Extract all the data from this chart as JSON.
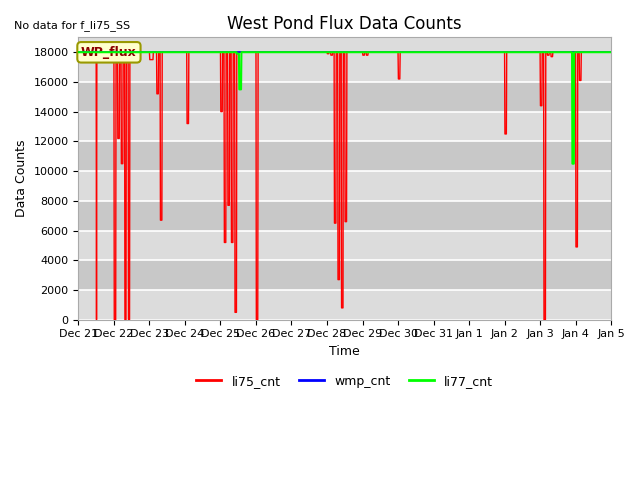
{
  "title": "West Pond Flux Data Counts",
  "no_data_text": "No data for f_li75_SS",
  "xlabel": "Time",
  "ylabel": "Data Counts",
  "ylim": [
    0,
    19000
  ],
  "yticks": [
    0,
    2000,
    4000,
    6000,
    8000,
    10000,
    12000,
    14000,
    16000,
    18000
  ],
  "legend_entries": [
    "li75_cnt",
    "wmp_cnt",
    "li77_cnt"
  ],
  "legend_colors": [
    "red",
    "blue",
    "lime"
  ],
  "annotation_text": "WP_flux",
  "bg_light": "#dcdcdc",
  "bg_dark": "#c8c8c8",
  "grid_color": "#e8e8e8",
  "title_fontsize": 12,
  "axis_fontsize": 9,
  "tick_fontsize": 8,
  "li75_color": "red",
  "wmp_color": "blue",
  "li77_color": "lime",
  "day_labels": [
    "Dec 21",
    "Dec 22",
    "Dec 23",
    "Dec 24",
    "Dec 25",
    "Dec 26",
    "Dec 27",
    "Dec 28",
    "Dec 29",
    "Dec 30",
    "Dec 31",
    "Jan 1",
    "Jan 2",
    "Jan 3",
    "Jan 4",
    "Jan 5"
  ],
  "li75_data": [
    [
      0.0,
      18000
    ],
    [
      0.5,
      18000
    ],
    [
      0.51,
      0
    ],
    [
      0.52,
      18000
    ],
    [
      1.0,
      18000
    ],
    [
      1.01,
      0
    ],
    [
      1.05,
      0
    ],
    [
      1.06,
      18000
    ],
    [
      1.1,
      18000
    ],
    [
      1.11,
      12200
    ],
    [
      1.15,
      12200
    ],
    [
      1.16,
      18000
    ],
    [
      1.2,
      18000
    ],
    [
      1.21,
      10500
    ],
    [
      1.25,
      10500
    ],
    [
      1.26,
      18000
    ],
    [
      1.3,
      18000
    ],
    [
      1.31,
      0
    ],
    [
      1.34,
      0
    ],
    [
      1.35,
      18000
    ],
    [
      1.4,
      18000
    ],
    [
      1.41,
      0
    ],
    [
      1.44,
      0
    ],
    [
      1.45,
      18000
    ],
    [
      2.0,
      18000
    ],
    [
      2.01,
      17500
    ],
    [
      2.1,
      17500
    ],
    [
      2.11,
      18000
    ],
    [
      2.2,
      18000
    ],
    [
      2.21,
      15200
    ],
    [
      2.25,
      15200
    ],
    [
      2.26,
      18000
    ],
    [
      2.3,
      18000
    ],
    [
      2.31,
      6700
    ],
    [
      2.35,
      6700
    ],
    [
      2.36,
      18000
    ],
    [
      3.0,
      18000
    ],
    [
      3.05,
      18000
    ],
    [
      3.06,
      13200
    ],
    [
      3.1,
      13200
    ],
    [
      3.11,
      18000
    ],
    [
      4.0,
      18000
    ],
    [
      4.01,
      14000
    ],
    [
      4.05,
      14000
    ],
    [
      4.06,
      18000
    ],
    [
      4.1,
      18000
    ],
    [
      4.11,
      5200
    ],
    [
      4.15,
      5200
    ],
    [
      4.16,
      18000
    ],
    [
      4.2,
      18000
    ],
    [
      4.21,
      7700
    ],
    [
      4.25,
      7700
    ],
    [
      4.26,
      18000
    ],
    [
      4.3,
      18000
    ],
    [
      4.31,
      5200
    ],
    [
      4.35,
      5200
    ],
    [
      4.36,
      18000
    ],
    [
      4.4,
      18000
    ],
    [
      4.41,
      500
    ],
    [
      4.45,
      500
    ],
    [
      4.46,
      18000
    ],
    [
      5.0,
      18000
    ],
    [
      5.01,
      0
    ],
    [
      5.05,
      0
    ],
    [
      5.06,
      18000
    ],
    [
      6.0,
      18000
    ],
    [
      7.0,
      18000
    ],
    [
      7.01,
      17900
    ],
    [
      7.05,
      17900
    ],
    [
      7.06,
      18000
    ],
    [
      7.1,
      18000
    ],
    [
      7.11,
      17800
    ],
    [
      7.15,
      17800
    ],
    [
      7.16,
      18000
    ],
    [
      7.2,
      18000
    ],
    [
      7.21,
      6500
    ],
    [
      7.25,
      6500
    ],
    [
      7.26,
      18000
    ],
    [
      7.3,
      18000
    ],
    [
      7.31,
      2700
    ],
    [
      7.35,
      2700
    ],
    [
      7.36,
      18000
    ],
    [
      7.4,
      18000
    ],
    [
      7.41,
      800
    ],
    [
      7.45,
      800
    ],
    [
      7.46,
      18000
    ],
    [
      7.5,
      18000
    ],
    [
      7.51,
      6600
    ],
    [
      7.55,
      6600
    ],
    [
      7.56,
      18000
    ],
    [
      8.0,
      18000
    ],
    [
      8.01,
      17800
    ],
    [
      8.05,
      17800
    ],
    [
      8.06,
      18000
    ],
    [
      8.1,
      18000
    ],
    [
      8.11,
      17800
    ],
    [
      8.15,
      17800
    ],
    [
      8.16,
      18000
    ],
    [
      9.0,
      18000
    ],
    [
      9.01,
      16200
    ],
    [
      9.05,
      16200
    ],
    [
      9.06,
      18000
    ],
    [
      10.0,
      18000
    ],
    [
      11.0,
      18000
    ],
    [
      12.0,
      18000
    ],
    [
      12.01,
      12500
    ],
    [
      12.05,
      12500
    ],
    [
      12.06,
      18000
    ],
    [
      13.0,
      18000
    ],
    [
      13.01,
      14400
    ],
    [
      13.05,
      14400
    ],
    [
      13.06,
      18000
    ],
    [
      13.1,
      18000
    ],
    [
      13.11,
      0
    ],
    [
      13.15,
      0
    ],
    [
      13.16,
      18000
    ],
    [
      13.2,
      18000
    ],
    [
      13.21,
      17800
    ],
    [
      13.25,
      17800
    ],
    [
      13.26,
      18000
    ],
    [
      13.3,
      18000
    ],
    [
      13.31,
      17700
    ],
    [
      13.35,
      17700
    ],
    [
      13.36,
      18000
    ],
    [
      14.0,
      18000
    ],
    [
      14.01,
      4900
    ],
    [
      14.05,
      4900
    ],
    [
      14.06,
      18000
    ],
    [
      14.1,
      18000
    ],
    [
      14.11,
      16100
    ],
    [
      14.15,
      16100
    ],
    [
      14.16,
      18000
    ],
    [
      15.0,
      18000
    ]
  ],
  "li77_data": [
    [
      0.0,
      18000
    ],
    [
      4.45,
      18000
    ],
    [
      4.46,
      17900
    ],
    [
      4.52,
      17900
    ],
    [
      4.53,
      15500
    ],
    [
      4.58,
      15500
    ],
    [
      4.59,
      18000
    ],
    [
      13.9,
      18000
    ],
    [
      13.91,
      10500
    ],
    [
      13.95,
      10500
    ],
    [
      13.96,
      18000
    ],
    [
      15.0,
      18000
    ]
  ],
  "wmp_data": [
    [
      0.0,
      18000
    ],
    [
      15.0,
      18000
    ]
  ]
}
